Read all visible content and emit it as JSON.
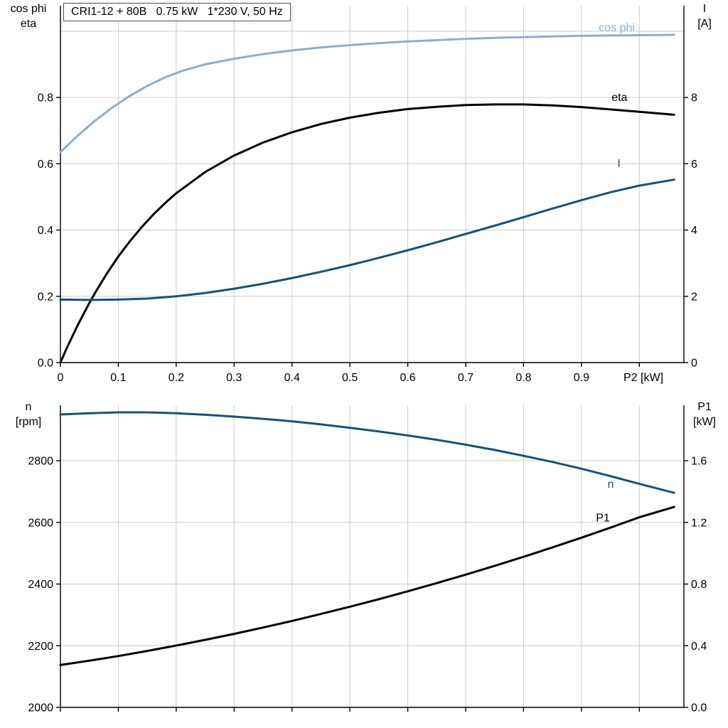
{
  "title": "CRI1-12 + 80B   0.75 kW   1*230 V, 50 Hz",
  "labels": {
    "top_left": [
      "cos phi",
      "eta"
    ],
    "top_right": [
      "I",
      "[A]"
    ],
    "bottom_left": [
      "n",
      "[rpm]"
    ],
    "bottom_right": [
      "P1",
      "[kW]"
    ],
    "x_axis": "P2 [kW]"
  },
  "colors": {
    "light_blue": "#8fadc9",
    "dark_blue": "#15517e",
    "black": "#000000",
    "grid": "#cccccc",
    "axis": "#000000"
  },
  "chart_data": [
    {
      "type": "line",
      "title": "CRI1-12 + 80B   0.75 kW   1*230 V, 50 Hz",
      "xlabel": "P2 [kW]",
      "ylabel_left": "cos phi / eta",
      "ylabel_right": "I [A]",
      "xlim": [
        0,
        1.077
      ],
      "ylim_left": [
        0,
        1.077
      ],
      "ylim_right": [
        0,
        10.77
      ],
      "x_ticks": [
        {
          "v": 0,
          "label": "0"
        },
        {
          "v": 0.1,
          "label": "0.1"
        },
        {
          "v": 0.2,
          "label": "0.2"
        },
        {
          "v": 0.3,
          "label": "0.3"
        },
        {
          "v": 0.4,
          "label": "0.4"
        },
        {
          "v": 0.5,
          "label": "0.5"
        },
        {
          "v": 0.6,
          "label": "0.6"
        },
        {
          "v": 0.7,
          "label": "0.7"
        },
        {
          "v": 0.8,
          "label": "0.8"
        },
        {
          "v": 0.9,
          "label": "0.9"
        },
        {
          "v": 1.0
        }
      ],
      "y_ticks_left": [
        {
          "v": 0,
          "label": "0.0"
        },
        {
          "v": 0.2,
          "label": "0.2"
        },
        {
          "v": 0.4,
          "label": "0.4"
        },
        {
          "v": 0.6,
          "label": "0.6"
        },
        {
          "v": 0.8,
          "label": "0.8"
        }
      ],
      "y_ticks_right": [
        {
          "v": 0,
          "label": "0"
        },
        {
          "v": 2,
          "label": "2"
        },
        {
          "v": 4,
          "label": "4"
        },
        {
          "v": 6,
          "label": "6"
        },
        {
          "v": 8,
          "label": "8"
        }
      ],
      "grid_x": [
        0.1,
        0.2,
        0.3,
        0.4,
        0.5,
        0.6,
        0.7,
        0.8,
        0.9,
        1.0
      ],
      "grid_y": [
        0.2,
        0.4,
        0.6,
        0.8,
        1.0
      ],
      "series": [
        {
          "id": "cos-phi",
          "name": "cos phi",
          "axis": "left",
          "color": "#8fadc9",
          "label_at": [
            0.93,
            1.0
          ],
          "points": [
            [
              0,
              0.635
            ],
            [
              0.03,
              0.685
            ],
            [
              0.06,
              0.73
            ],
            [
              0.09,
              0.77
            ],
            [
              0.12,
              0.805
            ],
            [
              0.15,
              0.835
            ],
            [
              0.18,
              0.86
            ],
            [
              0.21,
              0.88
            ],
            [
              0.25,
              0.9
            ],
            [
              0.3,
              0.917
            ],
            [
              0.35,
              0.931
            ],
            [
              0.4,
              0.942
            ],
            [
              0.45,
              0.951
            ],
            [
              0.5,
              0.958
            ],
            [
              0.55,
              0.964
            ],
            [
              0.6,
              0.969
            ],
            [
              0.65,
              0.973
            ],
            [
              0.7,
              0.977
            ],
            [
              0.75,
              0.98
            ],
            [
              0.8,
              0.982
            ],
            [
              0.85,
              0.984
            ],
            [
              0.9,
              0.986
            ],
            [
              0.95,
              0.987
            ],
            [
              1.0,
              0.988
            ],
            [
              1.06,
              0.989
            ]
          ]
        },
        {
          "id": "eta",
          "name": "eta",
          "axis": "left",
          "color": "#000000",
          "label_at": [
            0.952,
            0.79
          ],
          "points": [
            [
              0,
              0
            ],
            [
              0.01,
              0.04
            ],
            [
              0.02,
              0.077
            ],
            [
              0.03,
              0.113
            ],
            [
              0.04,
              0.147
            ],
            [
              0.05,
              0.18
            ],
            [
              0.06,
              0.211
            ],
            [
              0.08,
              0.268
            ],
            [
              0.1,
              0.32
            ],
            [
              0.12,
              0.366
            ],
            [
              0.14,
              0.408
            ],
            [
              0.16,
              0.446
            ],
            [
              0.18,
              0.48
            ],
            [
              0.2,
              0.511
            ],
            [
              0.25,
              0.575
            ],
            [
              0.3,
              0.625
            ],
            [
              0.35,
              0.664
            ],
            [
              0.4,
              0.695
            ],
            [
              0.45,
              0.72
            ],
            [
              0.5,
              0.739
            ],
            [
              0.55,
              0.754
            ],
            [
              0.6,
              0.765
            ],
            [
              0.65,
              0.772
            ],
            [
              0.7,
              0.777
            ],
            [
              0.75,
              0.779
            ],
            [
              0.8,
              0.779
            ],
            [
              0.85,
              0.776
            ],
            [
              0.9,
              0.771
            ],
            [
              0.95,
              0.764
            ],
            [
              1.0,
              0.757
            ],
            [
              1.06,
              0.748
            ]
          ]
        },
        {
          "id": "current",
          "name": "I",
          "axis": "right",
          "color": "#15517e",
          "label_at": [
            0.962,
            5.9
          ],
          "points": [
            [
              0,
              1.9
            ],
            [
              0.05,
              1.89
            ],
            [
              0.1,
              1.9
            ],
            [
              0.15,
              1.93
            ],
            [
              0.2,
              2.0
            ],
            [
              0.25,
              2.1
            ],
            [
              0.3,
              2.23
            ],
            [
              0.35,
              2.38
            ],
            [
              0.4,
              2.55
            ],
            [
              0.45,
              2.74
            ],
            [
              0.5,
              2.94
            ],
            [
              0.55,
              3.16
            ],
            [
              0.6,
              3.39
            ],
            [
              0.65,
              3.63
            ],
            [
              0.7,
              3.88
            ],
            [
              0.75,
              4.13
            ],
            [
              0.8,
              4.39
            ],
            [
              0.85,
              4.65
            ],
            [
              0.9,
              4.9
            ],
            [
              0.95,
              5.14
            ],
            [
              1.0,
              5.34
            ],
            [
              1.06,
              5.52
            ]
          ]
        }
      ]
    },
    {
      "type": "line",
      "title": "",
      "xlabel": "",
      "ylabel_left": "n [rpm]",
      "ylabel_right": "P1 [kW]",
      "xlim": [
        0,
        1.077
      ],
      "ylim_left": [
        2000,
        2980
      ],
      "ylim_right": [
        0,
        1.96
      ],
      "x_ticks": [
        {
          "v": 0
        },
        {
          "v": 0.1
        },
        {
          "v": 0.2
        },
        {
          "v": 0.3
        },
        {
          "v": 0.4
        },
        {
          "v": 0.5
        },
        {
          "v": 0.6
        },
        {
          "v": 0.7
        },
        {
          "v": 0.8
        },
        {
          "v": 0.9
        },
        {
          "v": 1.0
        }
      ],
      "y_ticks_left": [
        {
          "v": 2000,
          "label": "2000"
        },
        {
          "v": 2200,
          "label": "2200"
        },
        {
          "v": 2400,
          "label": "2400"
        },
        {
          "v": 2600,
          "label": "2600"
        },
        {
          "v": 2800,
          "label": "2800"
        }
      ],
      "y_ticks_right": [
        {
          "v": 0,
          "label": "0.0"
        },
        {
          "v": 0.4,
          "label": "0.4"
        },
        {
          "v": 0.8,
          "label": "0.8"
        },
        {
          "v": 1.2,
          "label": "1.2"
        },
        {
          "v": 1.6,
          "label": "1.6"
        }
      ],
      "grid_x": [
        0.1,
        0.2,
        0.3,
        0.4,
        0.5,
        0.6,
        0.7,
        0.8,
        0.9,
        1.0
      ],
      "grid_y": [
        2200,
        2400,
        2600,
        2800
      ],
      "series": [
        {
          "id": "speed",
          "name": "n",
          "axis": "left",
          "color": "#15517e",
          "label_at": [
            0.945,
            2712
          ],
          "points": [
            [
              0,
              2950
            ],
            [
              0.05,
              2954
            ],
            [
              0.1,
              2957
            ],
            [
              0.15,
              2957
            ],
            [
              0.2,
              2954
            ],
            [
              0.25,
              2949
            ],
            [
              0.3,
              2943
            ],
            [
              0.35,
              2936
            ],
            [
              0.4,
              2928
            ],
            [
              0.45,
              2918
            ],
            [
              0.5,
              2907
            ],
            [
              0.55,
              2895
            ],
            [
              0.6,
              2882
            ],
            [
              0.65,
              2868
            ],
            [
              0.7,
              2852
            ],
            [
              0.75,
              2835
            ],
            [
              0.8,
              2816
            ],
            [
              0.85,
              2796
            ],
            [
              0.9,
              2774
            ],
            [
              0.95,
              2750
            ],
            [
              1.0,
              2725
            ],
            [
              1.06,
              2696
            ]
          ]
        },
        {
          "id": "p1",
          "name": "P1",
          "axis": "right",
          "color": "#000000",
          "label_at": [
            0.925,
            1.205
          ],
          "points": [
            [
              0,
              0.275
            ],
            [
              0.05,
              0.303
            ],
            [
              0.1,
              0.333
            ],
            [
              0.15,
              0.366
            ],
            [
              0.2,
              0.401
            ],
            [
              0.25,
              0.438
            ],
            [
              0.3,
              0.477
            ],
            [
              0.35,
              0.518
            ],
            [
              0.4,
              0.561
            ],
            [
              0.45,
              0.606
            ],
            [
              0.5,
              0.653
            ],
            [
              0.55,
              0.702
            ],
            [
              0.6,
              0.753
            ],
            [
              0.65,
              0.806
            ],
            [
              0.7,
              0.861
            ],
            [
              0.75,
              0.918
            ],
            [
              0.8,
              0.977
            ],
            [
              0.85,
              1.038
            ],
            [
              0.9,
              1.101
            ],
            [
              0.95,
              1.166
            ],
            [
              1.0,
              1.233
            ],
            [
              1.06,
              1.3
            ]
          ]
        }
      ]
    }
  ]
}
